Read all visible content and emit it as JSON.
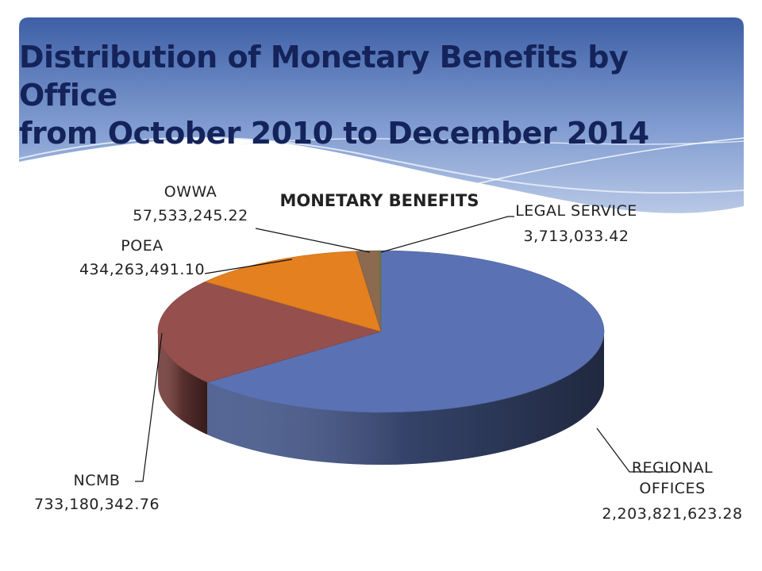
{
  "slide": {
    "title_line1": "Distribution of Monetary Benefits by Office",
    "title_line2": "from October 2010 to December 2014"
  },
  "colors": {
    "title": "#14235a",
    "band_top": "#3e5fa6",
    "band_bottom": "#b8c8e6"
  },
  "chart_data": {
    "type": "pie",
    "title": "MONETARY BENEFITS",
    "style": "3d",
    "categories": [
      "REGIONAL OFFICES",
      "NCMB",
      "POEA",
      "OWWA",
      "LEGAL SERVICE"
    ],
    "values": [
      2203821623.28,
      733180342.76,
      434263491.1,
      57533245.22,
      3713033.42
    ],
    "value_labels": [
      "2,203,821,623.28",
      "733,180,342.76",
      "434,263,491.10",
      "57,533,245.22",
      "3,713,033.42"
    ],
    "label_lines": [
      [
        "REGIONAL",
        "OFFICES",
        "2,203,821,623.28"
      ],
      [
        "NCMB",
        "733,180,342.76"
      ],
      [
        "POEA",
        "434,263,491.10"
      ],
      [
        "OWWA",
        "57,533,245.22"
      ],
      [
        "LEGAL SERVICE",
        "3,713,033.42"
      ]
    ],
    "colors": [
      "#5a72b4",
      "#954f4d",
      "#e4801f",
      "#8b6a4f",
      "#6f7f4a"
    ],
    "legend": "none"
  }
}
